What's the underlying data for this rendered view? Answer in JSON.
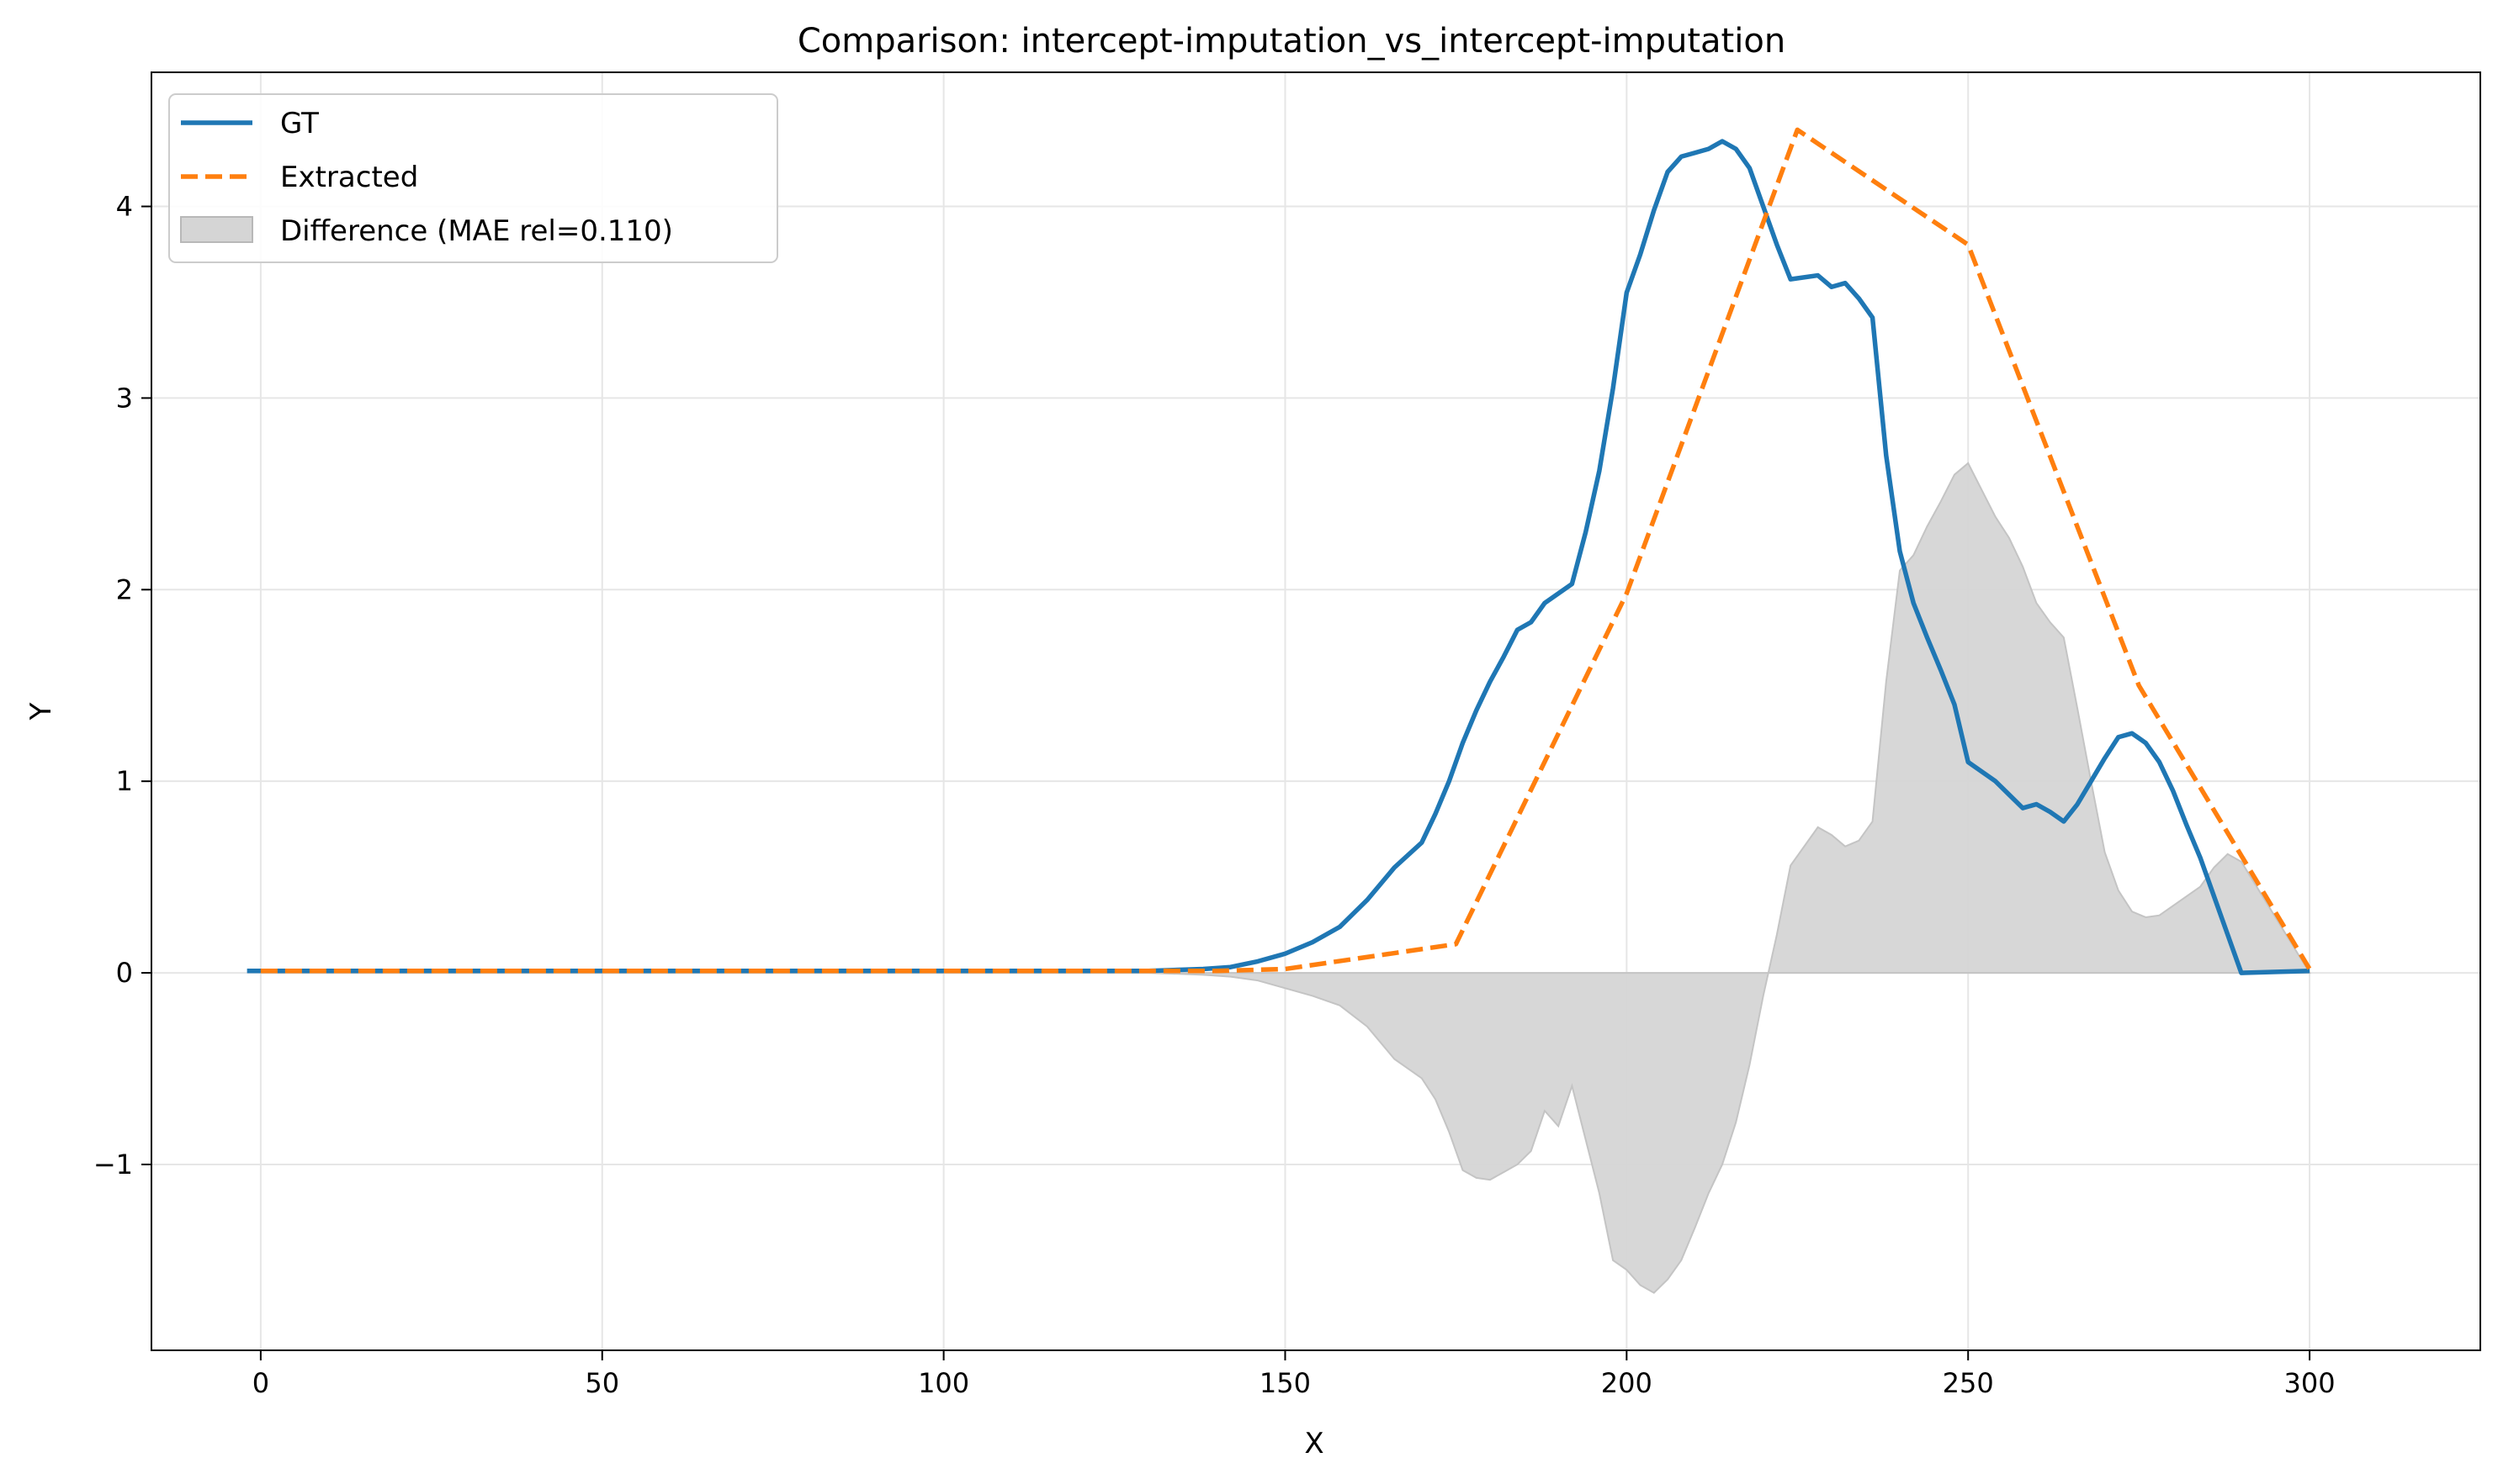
{
  "chart_data": {
    "type": "line",
    "title": "Comparison: intercept-imputation_vs_intercept-imputation",
    "xlabel": "X",
    "ylabel": "Y",
    "xlim": [
      -16,
      325
    ],
    "ylim": [
      -1.97,
      4.7
    ],
    "xticks": [
      0,
      50,
      100,
      150,
      200,
      250,
      300
    ],
    "xtick_labels": [
      "0",
      "50",
      "100",
      "150",
      "200",
      "250",
      "300"
    ],
    "yticks": [
      -1,
      0,
      1,
      2,
      3,
      4
    ],
    "ytick_labels": [
      "−1",
      "0",
      "1",
      "2",
      "3",
      "4"
    ],
    "grid": true,
    "legend_position": "top-left",
    "series": [
      {
        "name": "GT",
        "color": "#1f77b4",
        "style": "solid",
        "x": [
          -2,
          0,
          50,
          100,
          130,
          138,
          142,
          146,
          150,
          154,
          158,
          162,
          166,
          170,
          172,
          174,
          176,
          178,
          180,
          182,
          184,
          186,
          188,
          190,
          192,
          194,
          196,
          198,
          200,
          202,
          204,
          206,
          208,
          210,
          212,
          214,
          216,
          218,
          220,
          222,
          224,
          228,
          230,
          232,
          234,
          236,
          238,
          240,
          242,
          244,
          246,
          248,
          250,
          252,
          254,
          256,
          258,
          260,
          262,
          264,
          266,
          268,
          270,
          272,
          274,
          276,
          278,
          280,
          282,
          284,
          286,
          288,
          290,
          300
        ],
        "y": [
          0.01,
          0.01,
          0.01,
          0.01,
          0.01,
          0.02,
          0.03,
          0.06,
          0.1,
          0.16,
          0.24,
          0.38,
          0.55,
          0.68,
          0.83,
          1.0,
          1.2,
          1.37,
          1.52,
          1.65,
          1.79,
          1.83,
          1.93,
          1.98,
          2.03,
          2.3,
          2.62,
          3.05,
          3.55,
          3.75,
          3.98,
          4.18,
          4.26,
          4.28,
          4.3,
          4.34,
          4.3,
          4.2,
          4.0,
          3.8,
          3.62,
          3.64,
          3.58,
          3.6,
          3.52,
          3.42,
          2.7,
          2.2,
          1.93,
          1.75,
          1.58,
          1.4,
          1.1,
          1.05,
          1.0,
          0.93,
          0.86,
          0.88,
          0.84,
          0.79,
          0.88,
          1.0,
          1.12,
          1.23,
          1.25,
          1.2,
          1.1,
          0.95,
          0.77,
          0.6,
          0.4,
          0.2,
          0.0,
          0.01
        ]
      },
      {
        "name": "Extracted",
        "color": "#ff7f0e",
        "style": "dashed",
        "x": [
          0,
          50,
          100,
          140,
          150,
          175,
          200,
          225,
          250,
          275,
          300
        ],
        "y": [
          0.01,
          0.01,
          0.01,
          0.01,
          0.02,
          0.15,
          1.98,
          4.4,
          3.8,
          1.5,
          0.02
        ]
      },
      {
        "name": "Difference (MAE rel=0.110)",
        "color": "#d5d5d5",
        "style": "fill",
        "x": [
          0,
          50,
          100,
          130,
          138,
          142,
          146,
          150,
          154,
          158,
          162,
          166,
          170,
          172,
          174,
          176,
          178,
          180,
          182,
          184,
          186,
          188,
          190,
          192,
          194,
          196,
          198,
          200,
          202,
          204,
          206,
          208,
          210,
          212,
          214,
          216,
          218,
          220,
          222,
          224,
          228,
          230,
          232,
          234,
          236,
          238,
          240,
          242,
          244,
          246,
          248,
          250,
          252,
          254,
          256,
          258,
          260,
          262,
          264,
          266,
          268,
          270,
          272,
          274,
          276,
          278,
          280,
          282,
          284,
          286,
          288,
          290,
          300
        ],
        "y": [
          0.0,
          0.0,
          0.0,
          0.0,
          -0.01,
          -0.02,
          -0.04,
          -0.08,
          -0.12,
          -0.17,
          -0.28,
          -0.45,
          -0.55,
          -0.66,
          -0.83,
          -1.03,
          -1.07,
          -1.08,
          -1.04,
          -1.0,
          -0.93,
          -0.72,
          -0.8,
          -0.59,
          -0.87,
          -1.15,
          -1.5,
          -1.55,
          -1.63,
          -1.67,
          -1.6,
          -1.5,
          -1.33,
          -1.15,
          -1.0,
          -0.78,
          -0.48,
          -0.12,
          0.2,
          0.56,
          0.76,
          0.72,
          0.66,
          0.69,
          0.79,
          1.52,
          2.1,
          2.18,
          2.33,
          2.46,
          2.6,
          2.66,
          2.52,
          2.38,
          2.27,
          2.12,
          1.93,
          1.83,
          1.75,
          1.38,
          1.0,
          0.63,
          0.43,
          0.32,
          0.29,
          0.3,
          0.35,
          0.4,
          0.45,
          0.55,
          0.62,
          0.58,
          0.0
        ]
      }
    ]
  }
}
